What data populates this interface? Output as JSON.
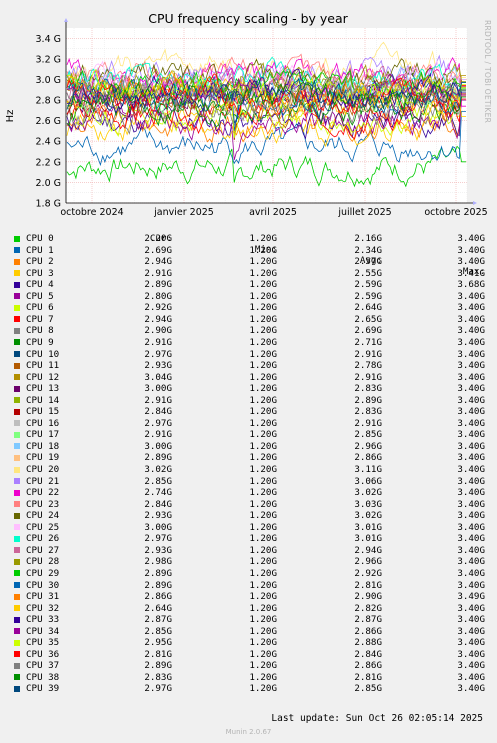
{
  "chart_data": {
    "type": "line",
    "title": "CPU frequency scaling - by year",
    "ylabel": "Hz",
    "side_label": "RRDTOOL / TOBI OETIKER",
    "ylim": [
      1.8,
      3.5
    ],
    "y_ticks": [
      "1.8 G",
      "2.0 G",
      "2.2 G",
      "2.4 G",
      "2.6 G",
      "2.8 G",
      "3.0 G",
      "3.2 G",
      "3.4 G"
    ],
    "x_ticks": [
      "octobre 2024",
      "janvier 2025",
      "avril 2025",
      "juillet 2025",
      "octobre 2025"
    ],
    "grid": true,
    "legend_headers": {
      "cur": "Cur:",
      "min": "Min:",
      "avg": "Avg:",
      "max": "Max:"
    },
    "series": [
      {
        "name": "CPU 0",
        "color": "#00cc00",
        "cur": "2.20G",
        "min": "1.20G",
        "avg": "2.16G",
        "max": "3.40G"
      },
      {
        "name": "CPU 1",
        "color": "#0066b3",
        "cur": "2.69G",
        "min": "1.20G",
        "avg": "2.34G",
        "max": "3.40G"
      },
      {
        "name": "CPU 2",
        "color": "#ff8000",
        "cur": "2.94G",
        "min": "1.20G",
        "avg": "2.57G",
        "max": "3.40G"
      },
      {
        "name": "CPU 3",
        "color": "#ffcc00",
        "cur": "2.91G",
        "min": "1.20G",
        "avg": "2.55G",
        "max": "3.41G"
      },
      {
        "name": "CPU 4",
        "color": "#330099",
        "cur": "2.89G",
        "min": "1.20G",
        "avg": "2.59G",
        "max": "3.68G"
      },
      {
        "name": "CPU 5",
        "color": "#990099",
        "cur": "2.80G",
        "min": "1.20G",
        "avg": "2.59G",
        "max": "3.40G"
      },
      {
        "name": "CPU 6",
        "color": "#ccff00",
        "cur": "2.92G",
        "min": "1.20G",
        "avg": "2.64G",
        "max": "3.40G"
      },
      {
        "name": "CPU 7",
        "color": "#ff0000",
        "cur": "2.94G",
        "min": "1.20G",
        "avg": "2.65G",
        "max": "3.40G"
      },
      {
        "name": "CPU 8",
        "color": "#808080",
        "cur": "2.90G",
        "min": "1.20G",
        "avg": "2.69G",
        "max": "3.40G"
      },
      {
        "name": "CPU 9",
        "color": "#008f00",
        "cur": "2.91G",
        "min": "1.20G",
        "avg": "2.71G",
        "max": "3.40G"
      },
      {
        "name": "CPU 10",
        "color": "#00487d",
        "cur": "2.97G",
        "min": "1.20G",
        "avg": "2.91G",
        "max": "3.40G"
      },
      {
        "name": "CPU 11",
        "color": "#b35a00",
        "cur": "2.93G",
        "min": "1.20G",
        "avg": "2.78G",
        "max": "3.40G"
      },
      {
        "name": "CPU 12",
        "color": "#b38f00",
        "cur": "3.04G",
        "min": "1.20G",
        "avg": "2.91G",
        "max": "3.40G"
      },
      {
        "name": "CPU 13",
        "color": "#6b006b",
        "cur": "3.00G",
        "min": "1.20G",
        "avg": "2.83G",
        "max": "3.40G"
      },
      {
        "name": "CPU 14",
        "color": "#8fb300",
        "cur": "2.91G",
        "min": "1.20G",
        "avg": "2.89G",
        "max": "3.40G"
      },
      {
        "name": "CPU 15",
        "color": "#b30000",
        "cur": "2.84G",
        "min": "1.20G",
        "avg": "2.83G",
        "max": "3.40G"
      },
      {
        "name": "CPU 16",
        "color": "#bebebe",
        "cur": "2.97G",
        "min": "1.20G",
        "avg": "2.91G",
        "max": "3.40G"
      },
      {
        "name": "CPU 17",
        "color": "#80ff80",
        "cur": "2.91G",
        "min": "1.20G",
        "avg": "2.85G",
        "max": "3.40G"
      },
      {
        "name": "CPU 18",
        "color": "#80c9ff",
        "cur": "3.00G",
        "min": "1.20G",
        "avg": "2.96G",
        "max": "3.40G"
      },
      {
        "name": "CPU 19",
        "color": "#ffc080",
        "cur": "2.89G",
        "min": "1.20G",
        "avg": "2.86G",
        "max": "3.40G"
      },
      {
        "name": "CPU 20",
        "color": "#ffe680",
        "cur": "3.02G",
        "min": "1.20G",
        "avg": "3.11G",
        "max": "3.40G"
      },
      {
        "name": "CPU 21",
        "color": "#aa80ff",
        "cur": "2.85G",
        "min": "1.20G",
        "avg": "3.06G",
        "max": "3.40G"
      },
      {
        "name": "CPU 22",
        "color": "#ee00cc",
        "cur": "2.74G",
        "min": "1.20G",
        "avg": "3.02G",
        "max": "3.40G"
      },
      {
        "name": "CPU 23",
        "color": "#ff8080",
        "cur": "2.84G",
        "min": "1.20G",
        "avg": "3.03G",
        "max": "3.40G"
      },
      {
        "name": "CPU 24",
        "color": "#666600",
        "cur": "2.93G",
        "min": "1.20G",
        "avg": "3.02G",
        "max": "3.40G"
      },
      {
        "name": "CPU 25",
        "color": "#ffbfff",
        "cur": "3.00G",
        "min": "1.20G",
        "avg": "3.01G",
        "max": "3.40G"
      },
      {
        "name": "CPU 26",
        "color": "#00ffcc",
        "cur": "2.97G",
        "min": "1.20G",
        "avg": "3.01G",
        "max": "3.40G"
      },
      {
        "name": "CPU 27",
        "color": "#cc6699",
        "cur": "2.93G",
        "min": "1.20G",
        "avg": "2.94G",
        "max": "3.40G"
      },
      {
        "name": "CPU 28",
        "color": "#999900",
        "cur": "2.98G",
        "min": "1.20G",
        "avg": "2.96G",
        "max": "3.40G"
      },
      {
        "name": "CPU 29",
        "color": "#00cc00",
        "cur": "2.89G",
        "min": "1.20G",
        "avg": "2.92G",
        "max": "3.40G"
      },
      {
        "name": "CPU 30",
        "color": "#0066b3",
        "cur": "2.89G",
        "min": "1.20G",
        "avg": "2.81G",
        "max": "3.40G"
      },
      {
        "name": "CPU 31",
        "color": "#ff8000",
        "cur": "2.86G",
        "min": "1.20G",
        "avg": "2.90G",
        "max": "3.49G"
      },
      {
        "name": "CPU 32",
        "color": "#ffcc00",
        "cur": "2.64G",
        "min": "1.20G",
        "avg": "2.82G",
        "max": "3.40G"
      },
      {
        "name": "CPU 33",
        "color": "#330099",
        "cur": "2.87G",
        "min": "1.20G",
        "avg": "2.87G",
        "max": "3.40G"
      },
      {
        "name": "CPU 34",
        "color": "#990099",
        "cur": "2.85G",
        "min": "1.20G",
        "avg": "2.86G",
        "max": "3.40G"
      },
      {
        "name": "CPU 35",
        "color": "#ccff00",
        "cur": "2.95G",
        "min": "1.20G",
        "avg": "2.88G",
        "max": "3.40G"
      },
      {
        "name": "CPU 36",
        "color": "#ff0000",
        "cur": "2.81G",
        "min": "1.20G",
        "avg": "2.84G",
        "max": "3.40G"
      },
      {
        "name": "CPU 37",
        "color": "#808080",
        "cur": "2.89G",
        "min": "1.20G",
        "avg": "2.86G",
        "max": "3.40G"
      },
      {
        "name": "CPU 38",
        "color": "#008f00",
        "cur": "2.83G",
        "min": "1.20G",
        "avg": "2.81G",
        "max": "3.40G"
      },
      {
        "name": "CPU 39",
        "color": "#00487d",
        "cur": "2.97G",
        "min": "1.20G",
        "avg": "2.85G",
        "max": "3.40G"
      }
    ]
  },
  "footer": {
    "last_update": "Last update: Sun Oct 26 02:05:14 2025",
    "version": "Munin 2.0.67"
  }
}
